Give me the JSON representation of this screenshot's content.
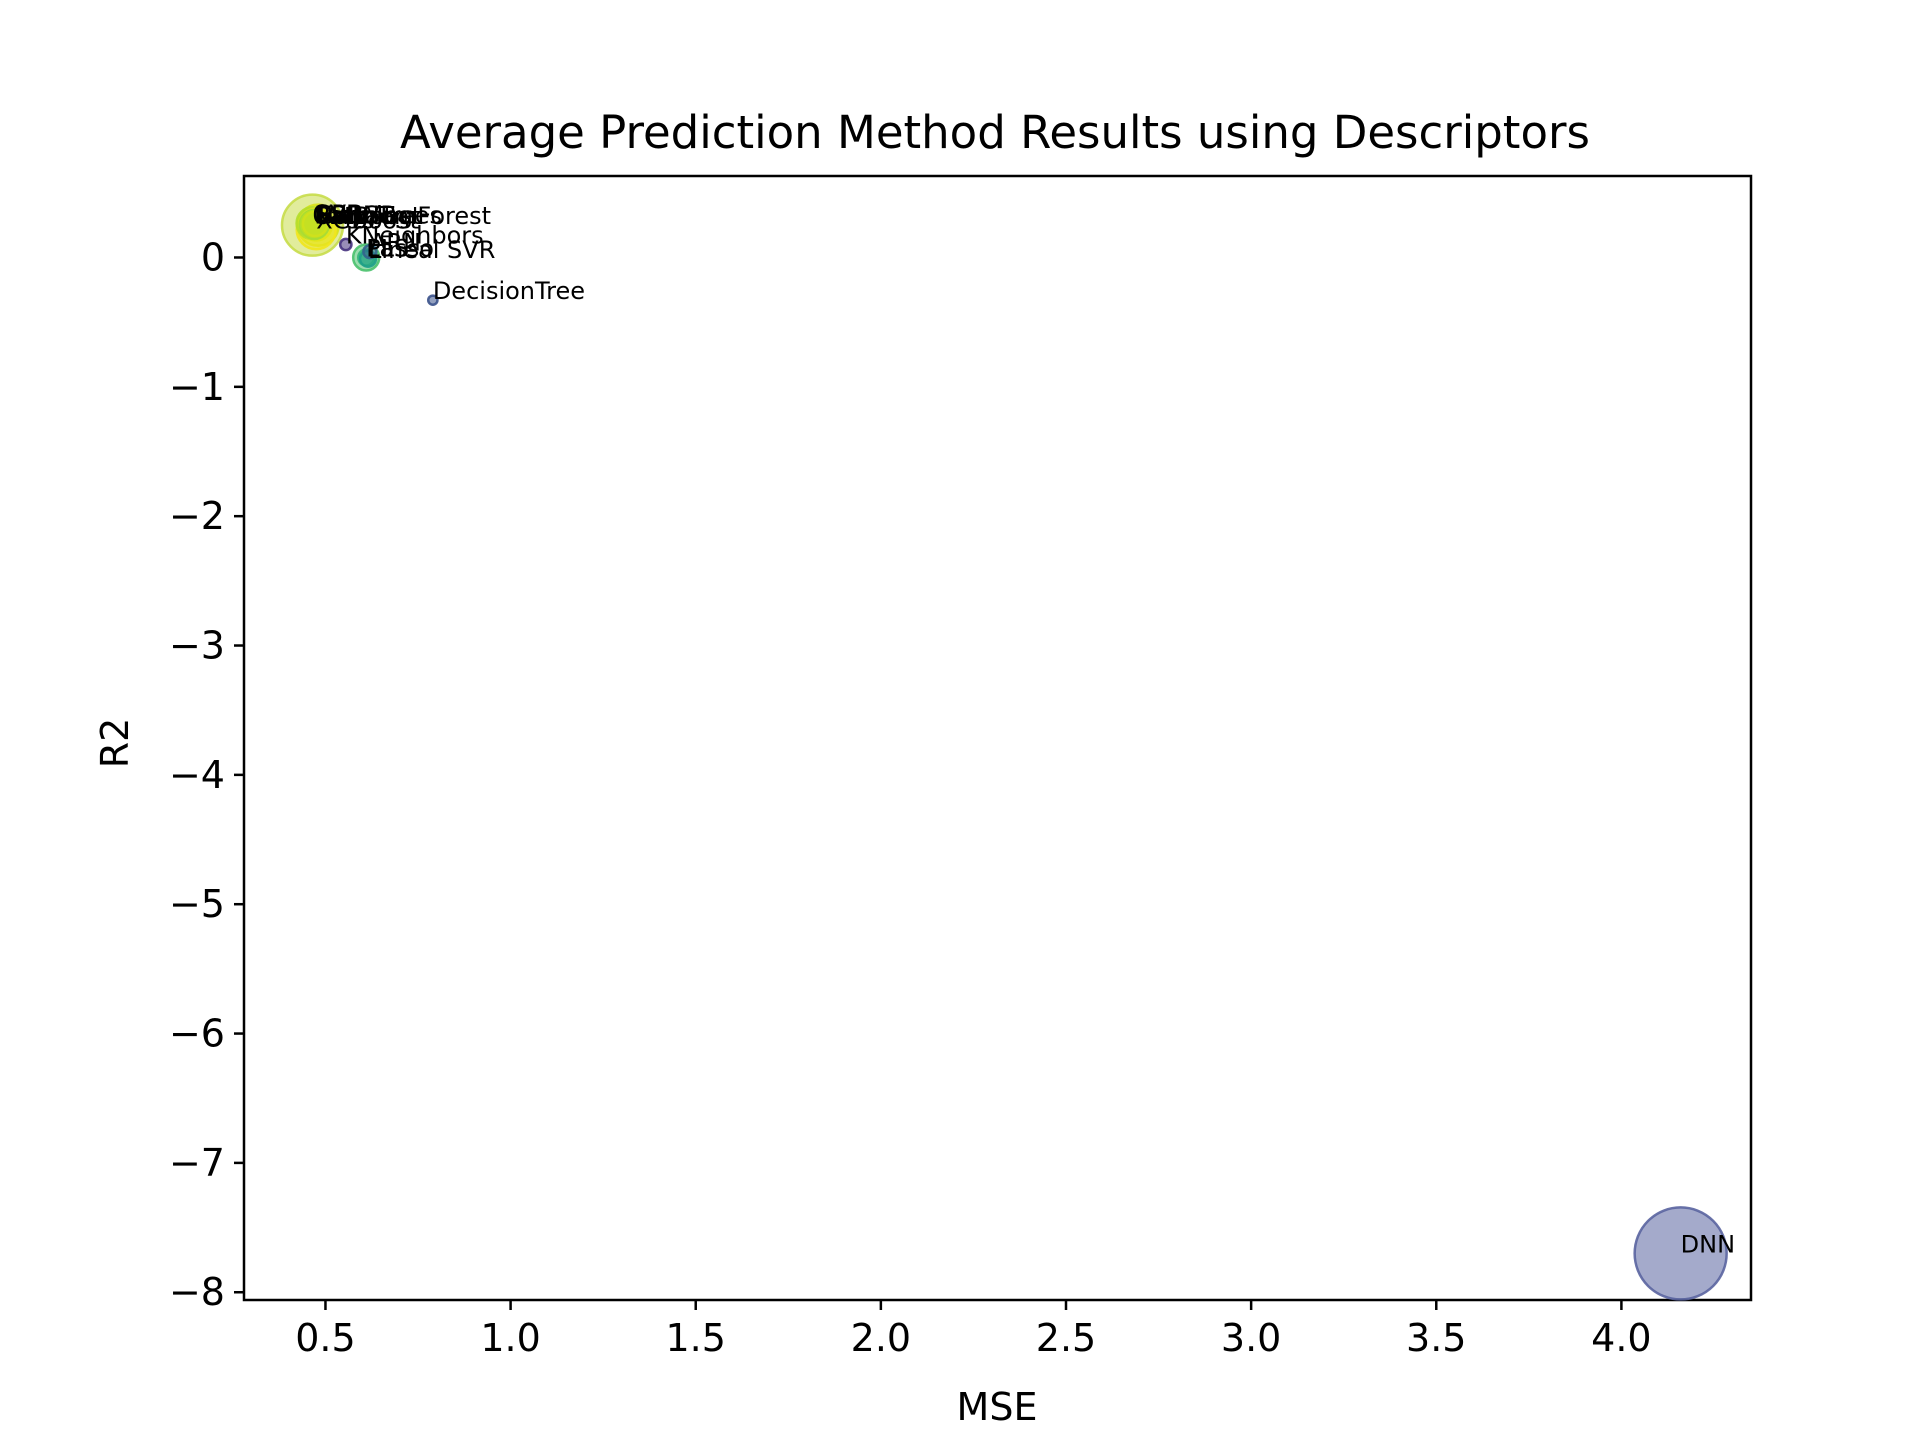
{
  "chart_data": {
    "type": "scatter",
    "title": "Average Prediction Method Results using Descriptors",
    "xlabel": "MSE",
    "ylabel": "R2",
    "xlim": [
      0.28,
      4.35
    ],
    "ylim": [
      -8.06,
      0.63
    ],
    "xticks": [
      0.5,
      1.0,
      1.5,
      2.0,
      2.5,
      3.0,
      3.5,
      4.0
    ],
    "xtick_labels": [
      "0.5",
      "1.0",
      "1.5",
      "2.0",
      "2.5",
      "3.0",
      "3.5",
      "4.0"
    ],
    "yticks": [
      0,
      -1,
      -2,
      -3,
      -4,
      -5,
      -6,
      -7,
      -8
    ],
    "ytick_labels": [
      "0",
      "−1",
      "−2",
      "−3",
      "−4",
      "−5",
      "−6",
      "−7",
      "−8"
    ],
    "grid": false,
    "legend": "none",
    "points": [
      {
        "label": "CatBoost",
        "x": 0.465,
        "y": 0.25,
        "size": 0.44,
        "color": "#c8dd4a"
      },
      {
        "label": "GBR",
        "x": 0.465,
        "y": 0.265,
        "size": 0.12,
        "color": "#b5de2b"
      },
      {
        "label": "SVR",
        "x": 0.47,
        "y": 0.265,
        "size": 0.08,
        "color": "#9bd93c"
      },
      {
        "label": "Bagging",
        "x": 0.47,
        "y": 0.255,
        "size": 0.1,
        "color": "#a5db36"
      },
      {
        "label": "LGBM",
        "x": 0.47,
        "y": 0.26,
        "size": 0.08,
        "color": "#bddf26"
      },
      {
        "label": "HistGB",
        "x": 0.472,
        "y": 0.26,
        "size": 0.07,
        "color": "#d0e11c"
      },
      {
        "label": "ExtraTrees",
        "x": 0.475,
        "y": 0.255,
        "size": 0.12,
        "color": "#e2e418"
      },
      {
        "label": "RandomForest",
        "x": 0.48,
        "y": 0.25,
        "size": 0.2,
        "color": "#d8e219"
      },
      {
        "label": "XGBoost",
        "x": 0.475,
        "y": 0.215,
        "size": 0.18,
        "color": "#f1e51d"
      },
      {
        "label": "KNeighbors",
        "x": 0.555,
        "y": 0.1,
        "size": 0.015,
        "color": "#46327e"
      },
      {
        "label": "ARN",
        "x": 0.62,
        "y": 0.045,
        "size": 0.02,
        "color": "#33638d"
      },
      {
        "label": "Lasso",
        "x": 0.61,
        "y": 0.0,
        "size": 0.03,
        "color": "#35b779"
      },
      {
        "label": "PLS",
        "x": 0.61,
        "y": 0.0,
        "size": 0.08,
        "color": "#4ac16d"
      },
      {
        "label": "Lineal SVR",
        "x": 0.615,
        "y": -0.01,
        "size": 0.03,
        "color": "#1f9e89"
      },
      {
        "label": "DecisionTree",
        "x": 0.79,
        "y": -0.33,
        "size": 0.01,
        "color": "#3b528b"
      },
      {
        "label": "DNN",
        "x": 4.16,
        "y": -7.7,
        "size": 1.0,
        "color": "#5a64a0"
      }
    ]
  }
}
